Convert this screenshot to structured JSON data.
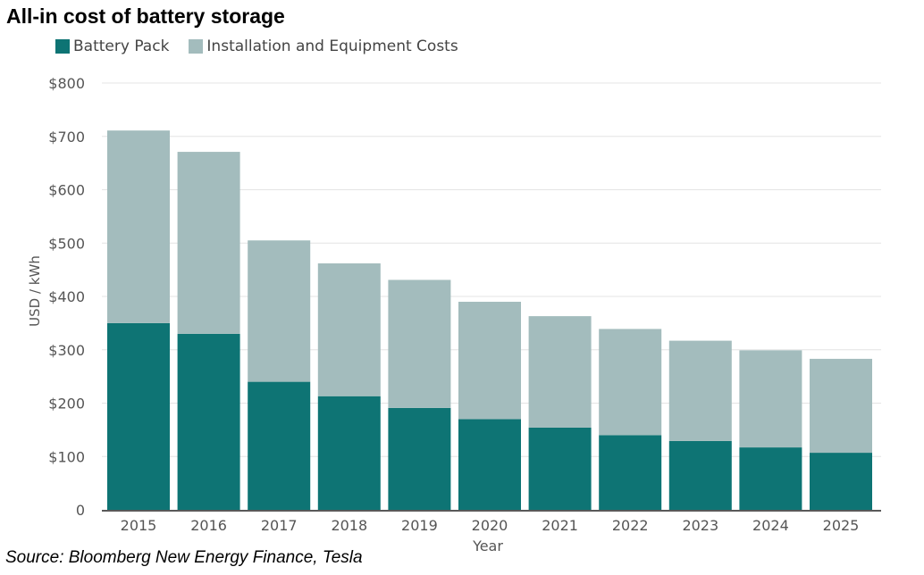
{
  "title": "All-in cost of battery storage",
  "source": "Source: Bloomberg New Energy Finance, Tesla",
  "colors": {
    "battery_pack": "#0e7474",
    "installation": "#a3bcbd",
    "grid": "#e4e4e4",
    "axis": "#222222",
    "tick_text": "#555555"
  },
  "chart_data": {
    "type": "bar",
    "stacked": true,
    "categories": [
      "2015",
      "2016",
      "2017",
      "2018",
      "2019",
      "2020",
      "2021",
      "2022",
      "2023",
      "2024",
      "2025"
    ],
    "series": [
      {
        "name": "Battery Pack",
        "values": [
          350,
          330,
          240,
          213,
          191,
          170,
          154,
          140,
          129,
          117,
          107
        ],
        "color": "#0e7474"
      },
      {
        "name": "Installation and Equipment Costs",
        "values": [
          361,
          341,
          265,
          249,
          240,
          220,
          209,
          199,
          188,
          182,
          176
        ],
        "color": "#a3bcbd"
      }
    ],
    "xlabel": "Year",
    "ylabel": "USD / kWh",
    "ylim": [
      0,
      800
    ],
    "yticks": [
      0,
      100,
      200,
      300,
      400,
      500,
      600,
      700,
      800
    ],
    "ytick_labels": [
      "0",
      "$100",
      "$200",
      "$300",
      "$400",
      "$500",
      "$600",
      "$700",
      "$800"
    ],
    "grid": true,
    "legend_position": "top-left"
  }
}
